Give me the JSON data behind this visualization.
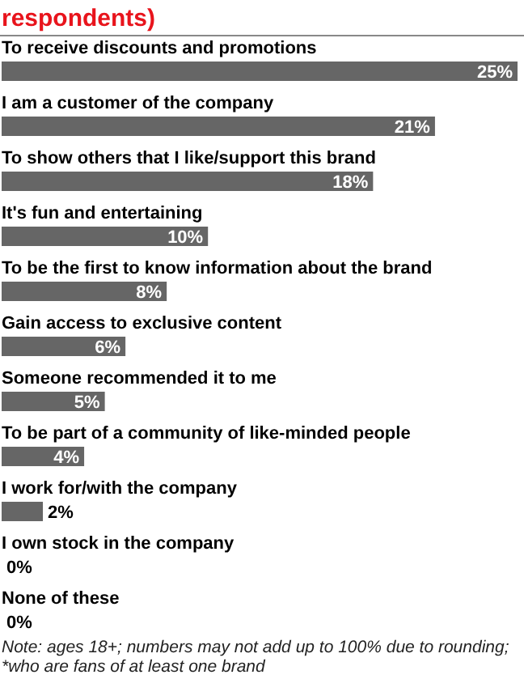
{
  "chart_data": {
    "type": "bar",
    "orientation": "horizontal",
    "relative": false,
    "title": "respondents)",
    "categories": [
      "To receive discounts and promotions",
      "I am a customer of the company",
      "To show others that I like/support this brand",
      "It's fun and entertaining",
      "To be the first to know information about the brand",
      "Gain access to exclusive content",
      "Someone recommended it to me",
      "To be part of a community of like-minded people",
      "I work for/with the company",
      "I own stock in the company",
      "None of these"
    ],
    "values": [
      25,
      21,
      18,
      10,
      8,
      6,
      5,
      4,
      2,
      0,
      0
    ],
    "value_labels": [
      "25%",
      "21%",
      "18%",
      "10%",
      "8%",
      "6%",
      "5%",
      "4%",
      "2%",
      "0%",
      "0%"
    ],
    "color": "#666666",
    "xlim": [
      0,
      25
    ],
    "annotations": [
      "Note: ages 18+; numbers may not add up to 100% due to rounding; *who are fans of at least one brand"
    ]
  }
}
